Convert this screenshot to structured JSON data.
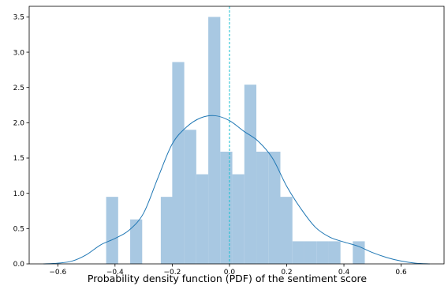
{
  "chart_data": {
    "type": "bar",
    "title": "",
    "xlabel": "Probability density function (PDF) of the sentiment score",
    "ylabel": "",
    "xlim": [
      -0.7,
      0.75
    ],
    "ylim": [
      0,
      3.65
    ],
    "grid": false,
    "x_ticks": [
      -0.6,
      -0.4,
      -0.2,
      0.0,
      0.2,
      0.4,
      0.6
    ],
    "x_tick_labels": [
      "−0.6",
      "−0.4",
      "−0.2",
      "0.0",
      "0.2",
      "0.4",
      "0.6"
    ],
    "y_ticks": [
      0.0,
      0.5,
      1.0,
      1.5,
      2.0,
      2.5,
      3.0,
      3.5
    ],
    "y_tick_labels": [
      "0.0",
      "0.5",
      "1.0",
      "1.5",
      "2.0",
      "2.5",
      "3.0",
      "3.5"
    ],
    "histogram": {
      "color": "#a8c8e2",
      "bin_width": 0.042,
      "bins": [
        {
          "left": -0.431,
          "value": 0.95
        },
        {
          "left": -0.347,
          "value": 0.63
        },
        {
          "left": -0.24,
          "value": 0.95
        },
        {
          "left": -0.2,
          "value": 2.86
        },
        {
          "left": -0.158,
          "value": 1.9
        },
        {
          "left": -0.116,
          "value": 1.27
        },
        {
          "left": -0.074,
          "value": 3.5
        },
        {
          "left": -0.032,
          "value": 1.59
        },
        {
          "left": 0.01,
          "value": 1.27
        },
        {
          "left": 0.052,
          "value": 2.54
        },
        {
          "left": 0.094,
          "value": 1.59
        },
        {
          "left": 0.136,
          "value": 1.59
        },
        {
          "left": 0.178,
          "value": 0.95
        },
        {
          "left": 0.22,
          "value": 0.32
        },
        {
          "left": 0.262,
          "value": 0.32
        },
        {
          "left": 0.304,
          "value": 0.32
        },
        {
          "left": 0.346,
          "value": 0.32
        },
        {
          "left": 0.431,
          "value": 0.32
        }
      ]
    },
    "kde": {
      "color": "#1f77b4",
      "x": [
        -0.65,
        -0.6,
        -0.55,
        -0.5,
        -0.45,
        -0.4,
        -0.35,
        -0.3,
        -0.25,
        -0.2,
        -0.15,
        -0.1,
        -0.05,
        0.0,
        0.05,
        0.1,
        0.15,
        0.2,
        0.25,
        0.3,
        0.35,
        0.4,
        0.45,
        0.5,
        0.55,
        0.6,
        0.65,
        0.7
      ],
      "y": [
        0.0,
        0.01,
        0.04,
        0.13,
        0.27,
        0.36,
        0.48,
        0.72,
        1.22,
        1.7,
        1.94,
        2.07,
        2.1,
        2.03,
        1.88,
        1.74,
        1.5,
        1.1,
        0.78,
        0.52,
        0.38,
        0.31,
        0.25,
        0.16,
        0.09,
        0.04,
        0.01,
        0.0
      ]
    },
    "vline": {
      "x": 0.0,
      "color": "#17becf",
      "style": "dashed"
    }
  }
}
